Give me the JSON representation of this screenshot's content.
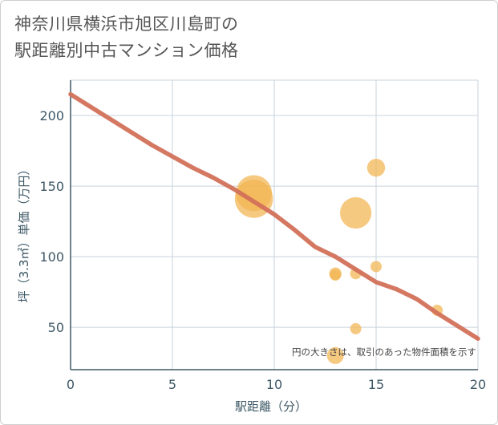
{
  "title_lines": [
    "神奈川県横浜市旭区川島町の",
    "駅距離別中古マンション価格"
  ],
  "chart_data": {
    "type": "scatter",
    "title": "神奈川県横浜市旭区川島町の駅距離別中古マンション価格",
    "xlabel": "駅距離（分）",
    "ylabel": "坪（3.3㎡）単価（万円）",
    "xlim": [
      0,
      20
    ],
    "ylim": [
      20,
      225
    ],
    "x_ticks": [
      0,
      5,
      10,
      15,
      20
    ],
    "y_ticks": [
      50,
      100,
      150,
      200
    ],
    "grid": true,
    "note": "円の大きさは、取引のあった物件面積を示す",
    "points": [
      {
        "x": 9,
        "y": 145,
        "size": 3.2
      },
      {
        "x": 9,
        "y": 141,
        "size": 3.4
      },
      {
        "x": 13,
        "y": 88,
        "size": 1.1
      },
      {
        "x": 13,
        "y": 87,
        "size": 1.0
      },
      {
        "x": 13,
        "y": 30,
        "size": 1.5
      },
      {
        "x": 14,
        "y": 131,
        "size": 2.8
      },
      {
        "x": 14,
        "y": 88,
        "size": 1.0
      },
      {
        "x": 14,
        "y": 49,
        "size": 1.0
      },
      {
        "x": 15,
        "y": 163,
        "size": 1.6
      },
      {
        "x": 15,
        "y": 93,
        "size": 1.0
      },
      {
        "x": 18,
        "y": 62,
        "size": 1.0
      }
    ],
    "trend_line": {
      "x": [
        0,
        1,
        2,
        3,
        4,
        5,
        6,
        7,
        8,
        9,
        10,
        11,
        12,
        13,
        14,
        15,
        16,
        17,
        18,
        19,
        20
      ],
      "y": [
        215,
        206,
        197,
        188,
        179,
        171,
        163,
        156,
        148,
        139,
        130,
        119,
        107,
        100,
        91,
        82,
        77,
        70,
        60,
        51,
        42
      ]
    },
    "colors": {
      "bubble": "#f2b451",
      "trend": "#d2715a",
      "grid": "#c9d3dc",
      "axis": "#3d5866"
    }
  }
}
